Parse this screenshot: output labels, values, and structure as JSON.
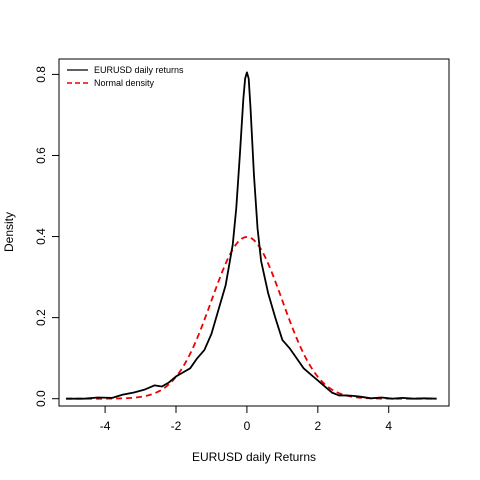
{
  "chart_data": {
    "type": "line",
    "title": "",
    "xlabel": "EURUSD daily Returns",
    "ylabel": "Density",
    "xlim": [
      -5.3,
      5.7
    ],
    "ylim": [
      -0.018,
      0.838
    ],
    "xticks": [
      -4,
      -2,
      0,
      2,
      4
    ],
    "xtick_labels": [
      "-4",
      "-2",
      "0",
      "2",
      "4"
    ],
    "yticks": [
      0.0,
      0.2,
      0.4,
      0.6,
      0.8
    ],
    "ytick_labels": [
      "0.0",
      "0.2",
      "0.4",
      "0.6",
      "0.8"
    ],
    "grid": false,
    "legend_position": "top-left",
    "series": [
      {
        "name": "EURUSD daily returns",
        "color": "#000000",
        "style": "solid",
        "x": [
          -5.1,
          -4.6,
          -4.2,
          -3.8,
          -3.5,
          -3.2,
          -2.9,
          -2.6,
          -2.4,
          -2.2,
          -2.0,
          -1.8,
          -1.6,
          -1.4,
          -1.2,
          -1.0,
          -0.8,
          -0.6,
          -0.4,
          -0.3,
          -0.2,
          -0.1,
          -0.05,
          0.0,
          0.05,
          0.1,
          0.2,
          0.3,
          0.4,
          0.6,
          0.8,
          1.0,
          1.2,
          1.4,
          1.6,
          1.8,
          2.0,
          2.2,
          2.4,
          2.6,
          2.8,
          3.0,
          3.2,
          3.5,
          3.8,
          4.1,
          4.4,
          4.7,
          5.0,
          5.35
        ],
        "values": [
          0.0,
          0.0,
          0.003,
          0.002,
          0.01,
          0.015,
          0.022,
          0.033,
          0.03,
          0.04,
          0.055,
          0.065,
          0.075,
          0.1,
          0.12,
          0.16,
          0.22,
          0.28,
          0.38,
          0.47,
          0.6,
          0.74,
          0.79,
          0.805,
          0.79,
          0.72,
          0.55,
          0.42,
          0.34,
          0.26,
          0.2,
          0.145,
          0.125,
          0.1,
          0.075,
          0.06,
          0.045,
          0.03,
          0.015,
          0.008,
          0.008,
          0.007,
          0.005,
          0.001,
          0.003,
          0.0,
          0.002,
          0.0,
          0.001,
          0.0
        ]
      },
      {
        "name": "Normal density",
        "color": "#ee0000",
        "style": "dashed",
        "normal_mean": 0.0,
        "normal_sd": 1.0
      }
    ]
  }
}
